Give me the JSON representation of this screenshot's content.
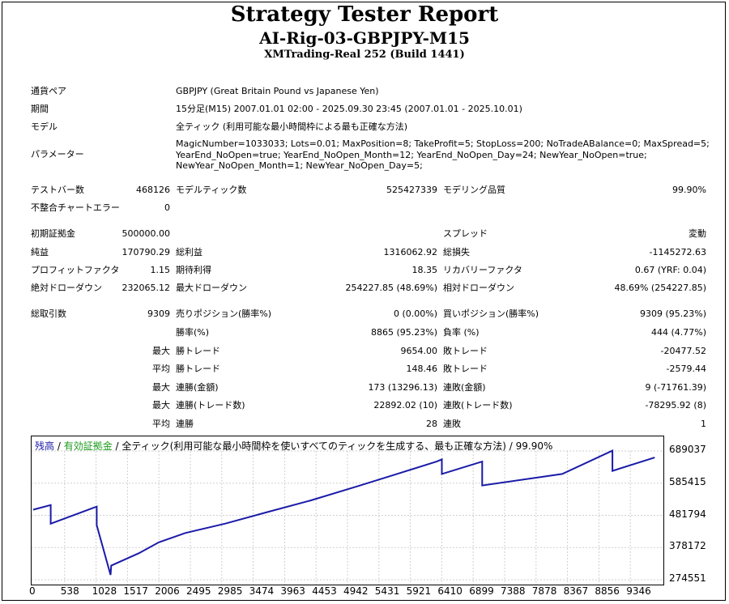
{
  "header": {
    "title": "Strategy Tester Report",
    "ea_name": "AI-Rig-03-GBPJPY-M15",
    "server": "XMTrading-Real 252 (Build 1441)"
  },
  "info": {
    "symbol_label": "通貨ペア",
    "symbol_value": "GBPJPY (Great Britain Pound vs Japanese Yen)",
    "period_label": "期間",
    "period_value": "15分足(M15) 2007.01.01 02:00 - 2025.09.30 23:45 (2007.01.01 - 2025.10.01)",
    "model_label": "モデル",
    "model_value": "全ティック (利用可能な最小時間枠による最も正確な方法)",
    "params_label": "パラメーター",
    "params_value": "MagicNumber=1033033; Lots=0.01; MaxPosition=8; TakeProfit=5; StopLoss=200; NoTradeABalance=0; MaxSpread=5;\nYearEnd_NoOpen=true; YearEnd_NoOpen_Month=12; YearEnd_NoOpen_Day=24; NewYear_NoOpen=true;\nNewYear_NoOpen_Month=1; NewYear_NoOpen_Day=5;"
  },
  "stats": {
    "bars_label": "テストバー数",
    "bars_value": "468126",
    "ticks_label": "モデルティック数",
    "ticks_value": "525427339",
    "quality_label": "モデリング品質",
    "quality_value": "99.90%",
    "mismatch_label": "不整合チャートエラー",
    "mismatch_value": "0",
    "deposit_label": "初期証拠金",
    "deposit_value": "500000.00",
    "spread_label": "スプレッド",
    "spread_value": "変動",
    "net_label": "純益",
    "net_value": "170790.29",
    "gross_profit_label": "総利益",
    "gross_profit_value": "1316062.92",
    "gross_loss_label": "総損失",
    "gross_loss_value": "-1145272.63",
    "pf_label": "プロフィットファクタ",
    "pf_value": "1.15",
    "payoff_label": "期待利得",
    "payoff_value": "18.35",
    "recovery_label": "リカバリーファクタ",
    "recovery_value": "0.67 (YRF: 0.04)",
    "abs_dd_label": "絶対ドローダウン",
    "abs_dd_value": "232065.12",
    "max_dd_label": "最大ドローダウン",
    "max_dd_value": "254227.85 (48.69%)",
    "rel_dd_label": "相対ドローダウン",
    "rel_dd_value": "48.69% (254227.85)",
    "trades_label": "総取引数",
    "trades_value": "9309",
    "short_label": "売りポジション(勝率%)",
    "short_value": "0 (0.00%)",
    "long_label": "買いポジション(勝率%)",
    "long_value": "9309 (95.23%)",
    "winrate_label": "勝率(%)",
    "winrate_value": "8865 (95.23%)",
    "lossrate_label": "負率 (%)",
    "lossrate_value": "444 (4.77%)",
    "max_word": "最大",
    "avg_word": "平均",
    "max_win_label": "勝トレード",
    "max_win_value": "9654.00",
    "max_loss_label": "敗トレード",
    "max_loss_value": "-20477.52",
    "avg_win_label": "勝トレード",
    "avg_win_value": "148.46",
    "avg_loss_label": "敗トレード",
    "avg_loss_value": "-2579.44",
    "cons_wins_money_label": "連勝(金額)",
    "cons_wins_money_value": "173 (13296.13)",
    "cons_losses_money_label": "連敗(金額)",
    "cons_losses_money_value": "9 (-71761.39)",
    "cons_profit_label": "連勝(トレード数)",
    "cons_profit_value": "22892.02 (10)",
    "cons_loss_label": "連敗(トレード数)",
    "cons_loss_value": "-78295.92 (8)",
    "avg_cons_wins_label": "連勝",
    "avg_cons_wins_value": "28",
    "avg_cons_losses_label": "連敗",
    "avg_cons_losses_value": "1"
  },
  "chart_legend": {
    "balance": "残高",
    "sep1": " / ",
    "equity": "有効証拠金",
    "sep2": " / ",
    "rest": "全ティック(利用可能な最小時間枠を使いすべてのティックを生成する、最も正確な方法) / 99.90%"
  },
  "colors": {
    "balance": "#1a1aa8",
    "equity": "#1a9a1a",
    "grid": "#cfcfcf"
  },
  "chart_data": {
    "type": "line",
    "series": [
      {
        "name": "残高",
        "x": [
          0,
          265,
          265,
          960,
          960,
          1170,
          1180,
          1600,
          1900,
          2300,
          2900,
          3500,
          4200,
          4900,
          5500,
          6100,
          6180,
          6180,
          6790,
          6790,
          8000,
          8760,
          8760,
          9400
        ],
        "y": [
          500000,
          515000,
          455000,
          510000,
          450000,
          290000,
          320000,
          360000,
          395000,
          425000,
          455000,
          490000,
          530000,
          575000,
          615000,
          655000,
          662000,
          615000,
          655000,
          578000,
          615000,
          690000,
          625000,
          668000
        ]
      }
    ],
    "x_ticks": [
      "0",
      "538",
      "1028",
      "1517",
      "2006",
      "2495",
      "2985",
      "3474",
      "3963",
      "4453",
      "4942",
      "5431",
      "5921",
      "6410",
      "6899",
      "7388",
      "7878",
      "8367",
      "8856",
      "9346"
    ],
    "y_ticks": [
      "689037",
      "585415",
      "481794",
      "378172",
      "274551"
    ],
    "xlim": [
      0,
      9506
    ],
    "ylim": [
      274551,
      689037
    ],
    "grid": true
  }
}
